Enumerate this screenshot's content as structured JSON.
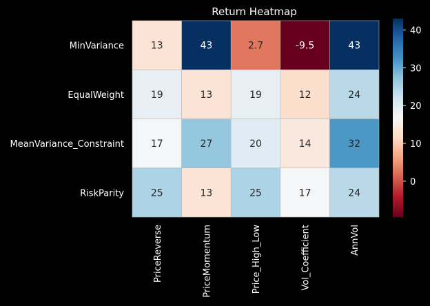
{
  "chart_data": {
    "type": "heatmap",
    "title": "Return Heatmap",
    "rows": [
      "MinVariance",
      "EqualWeight",
      "MeanVariance_Constraint",
      "RiskParity"
    ],
    "columns": [
      "PriceReverse",
      "PriceMomentum",
      "Price_High_Low",
      "Vol_Coefficient",
      "AnnVol"
    ],
    "values": [
      [
        13,
        43,
        2.7,
        -9.5,
        43
      ],
      [
        19,
        13,
        19,
        12,
        24
      ],
      [
        17,
        27,
        20,
        14,
        32
      ],
      [
        25,
        13,
        25,
        17,
        24
      ]
    ],
    "cell_labels": [
      [
        "13",
        "43",
        "2.7",
        "-9.5",
        "43"
      ],
      [
        "19",
        "13",
        "19",
        "12",
        "24"
      ],
      [
        "17",
        "27",
        "20",
        "14",
        "32"
      ],
      [
        "25",
        "13",
        "25",
        "17",
        "24"
      ]
    ],
    "colormap": "RdBu",
    "vmin": -9.5,
    "vmax": 43,
    "colorbar_ticks": [
      0,
      10,
      20,
      30,
      40
    ],
    "background": "#000000",
    "text_color": "#ffffff"
  }
}
